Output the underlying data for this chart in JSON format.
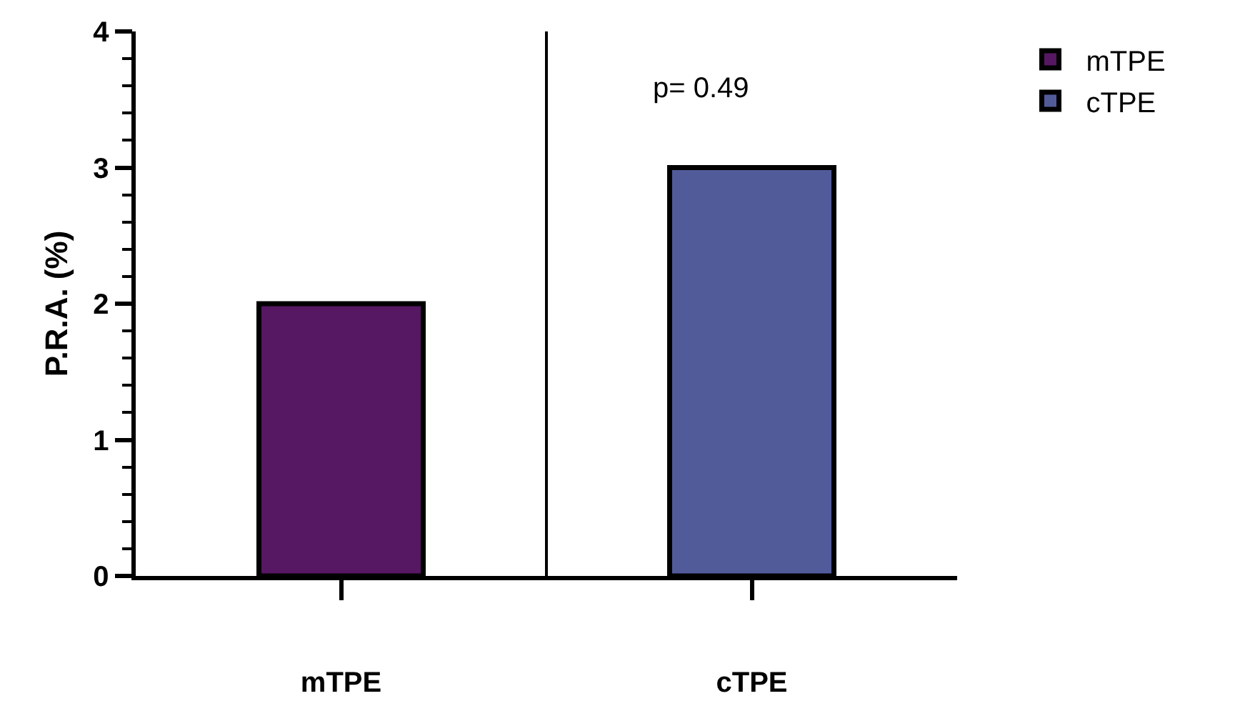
{
  "chart_data": {
    "type": "bar",
    "ylabel": "P.R.A. (%)",
    "categories": [
      "mTPE",
      "cTPE"
    ],
    "series": [
      {
        "name": "mTPE",
        "color": "#561763",
        "values": [
          2,
          null
        ]
      },
      {
        "name": "cTPE",
        "color": "#525b9a",
        "values": [
          null,
          3
        ]
      }
    ],
    "ylim": [
      0,
      4
    ],
    "yticks": [
      0,
      1,
      2,
      3,
      4
    ],
    "grid": false,
    "legend": "top right",
    "annotations": [
      "p= 0.49"
    ]
  }
}
